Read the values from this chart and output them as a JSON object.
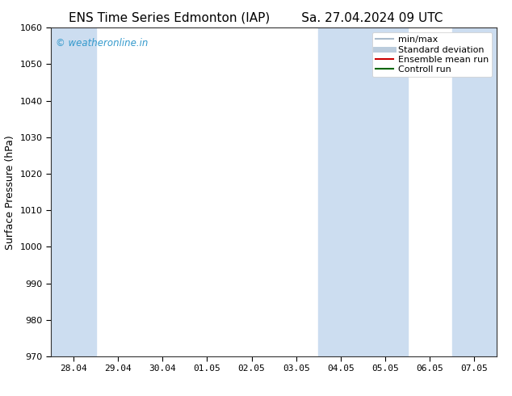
{
  "title_left": "ENS Time Series Edmonton (IAP)",
  "title_right": "Sa. 27.04.2024 09 UTC",
  "ylabel": "Surface Pressure (hPa)",
  "ylim": [
    970,
    1060
  ],
  "yticks": [
    970,
    980,
    990,
    1000,
    1010,
    1020,
    1030,
    1040,
    1050,
    1060
  ],
  "xtick_labels": [
    "28.04",
    "29.04",
    "30.04",
    "01.05",
    "02.05",
    "03.05",
    "04.05",
    "05.05",
    "06.05",
    "07.05"
  ],
  "xtick_positions": [
    0,
    1,
    2,
    3,
    4,
    5,
    6,
    7,
    8,
    9
  ],
  "xlim": [
    -0.5,
    9.5
  ],
  "shaded_bands": [
    {
      "x_start": -0.5,
      "x_end": 0.5
    },
    {
      "x_start": 5.5,
      "x_end": 6.5
    },
    {
      "x_start": 6.5,
      "x_end": 7.5
    },
    {
      "x_start": 8.5,
      "x_end": 9.5
    }
  ],
  "shade_color": "#ccddf0",
  "background_color": "#ffffff",
  "plot_bg_color": "#ffffff",
  "watermark": "© weatheronline.in",
  "watermark_color": "#3399cc",
  "legend_items": [
    {
      "label": "min/max",
      "color": "#aabbcc",
      "linestyle": "-",
      "linewidth": 1.5
    },
    {
      "label": "Standard deviation",
      "color": "#bbccdd",
      "linestyle": "-",
      "linewidth": 5
    },
    {
      "label": "Ensemble mean run",
      "color": "#cc0000",
      "linestyle": "-",
      "linewidth": 1.5
    },
    {
      "label": "Controll run",
      "color": "#006600",
      "linestyle": "-",
      "linewidth": 1.5
    }
  ],
  "title_fontsize": 11,
  "axis_fontsize": 9,
  "tick_fontsize": 8,
  "legend_fontsize": 8
}
